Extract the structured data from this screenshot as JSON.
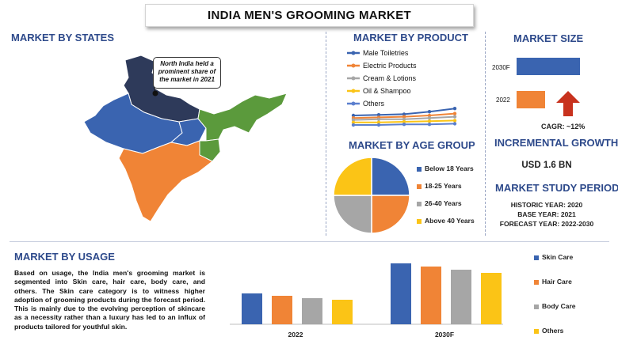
{
  "title": "INDIA MEN'S GROOMING MARKET",
  "sections": {
    "states": "MARKET BY STATES",
    "product": "MARKET BY PRODUCT",
    "size": "MARKET SIZE",
    "age": "MARKET BY AGE GROUP",
    "incremental": "INCREMENTAL GROWTH",
    "study": "MARKET STUDY PERIOD",
    "usage": "MARKET BY USAGE"
  },
  "callout": "North India held a prominent share of the market in 2021",
  "colors": {
    "blue": "#3a64b0",
    "orange": "#f08436",
    "gray": "#a6a6a6",
    "yellow": "#fbc416",
    "navy": "#2e3a5a",
    "green": "#5b9a3c",
    "title_blue": "#2e4a8b"
  },
  "market_size": {
    "cagr_label": "CAGR:",
    "cagr_value": "~12%",
    "up_arrow_icon": "up-arrow-icon"
  },
  "incremental_growth": "USD 1.6 BN",
  "study_period": {
    "historic": "HISTORIC YEAR: 2020",
    "base": "BASE YEAR: 2021",
    "forecast": "FORECAST YEAR: 2022-2030"
  },
  "usage_text": "Based on usage, the India men's grooming market is segmented into Skin care, hair care, body care, and others. The Skin care category is to witness higher adoption of grooming products during the forecast period. This is mainly due to the evolving perception of skincare as a necessity rather than a luxury has led to an influx of products tailored for youthful skin.",
  "chart_data": [
    {
      "type": "line",
      "id": "product",
      "x": [
        1,
        2,
        3,
        4,
        5
      ],
      "series": [
        {
          "name": "Male Toiletries",
          "color": "#3a64b0",
          "values": [
            3.0,
            3.1,
            3.2,
            3.6,
            4.1
          ]
        },
        {
          "name": "Electric Products",
          "color": "#f08436",
          "values": [
            2.6,
            2.7,
            2.8,
            3.0,
            3.3
          ]
        },
        {
          "name": "Cream & Lotions",
          "color": "#a6a6a6",
          "values": [
            2.3,
            2.4,
            2.4,
            2.6,
            2.8
          ]
        },
        {
          "name": "Oil & Shampoo",
          "color": "#fbc416",
          "values": [
            1.9,
            1.9,
            2.0,
            2.1,
            2.2
          ]
        },
        {
          "name": "Others",
          "color": "#5b7fce",
          "values": [
            1.5,
            1.5,
            1.6,
            1.6,
            1.7
          ]
        }
      ],
      "ylim": [
        1,
        4.5
      ]
    },
    {
      "type": "bar",
      "id": "size",
      "orientation": "horizontal",
      "categories": [
        "2030F",
        "2022"
      ],
      "values": [
        100,
        45
      ],
      "colors": [
        "#3a64b0",
        "#f08436"
      ]
    },
    {
      "type": "pie",
      "id": "age",
      "labels": [
        "Below 18 Years",
        "18-25 Years",
        "26-40 Years",
        "Above 40 Years"
      ],
      "values": [
        25,
        25,
        25,
        25
      ],
      "colors": [
        "#3a64b0",
        "#f08436",
        "#a6a6a6",
        "#fbc416"
      ]
    },
    {
      "type": "bar",
      "id": "usage",
      "categories": [
        "2022",
        "2030F"
      ],
      "series": [
        {
          "name": "Skin Care",
          "color": "#3a64b0",
          "values": [
            39,
            77
          ]
        },
        {
          "name": "Hair Care",
          "color": "#f08436",
          "values": [
            36,
            73
          ]
        },
        {
          "name": "Body Care",
          "color": "#a6a6a6",
          "values": [
            33,
            69
          ]
        },
        {
          "name": "Others",
          "color": "#fbc416",
          "values": [
            31,
            65
          ]
        }
      ],
      "ylim": [
        0,
        80
      ]
    }
  ]
}
